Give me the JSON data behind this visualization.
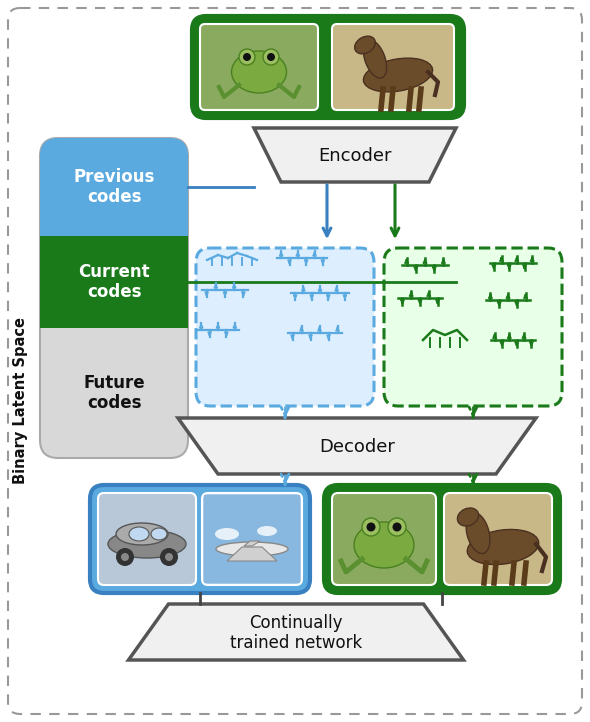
{
  "fig_width": 5.9,
  "fig_height": 7.22,
  "green_dark": "#1a7a1a",
  "blue_mid": "#5aaae0",
  "blue_dark": "#3880c0",
  "gray_light": "#d8d8d8",
  "white": "#ffffff",
  "black": "#111111",
  "title_text": "Binary Latent Space",
  "prev_codes_text": "Previous\ncodes",
  "curr_codes_text": "Current\ncodes",
  "future_codes_text": "Future\ncodes",
  "encoder_text": "Encoder",
  "decoder_text": "Decoder",
  "network_text": "Continually\ntrained network"
}
